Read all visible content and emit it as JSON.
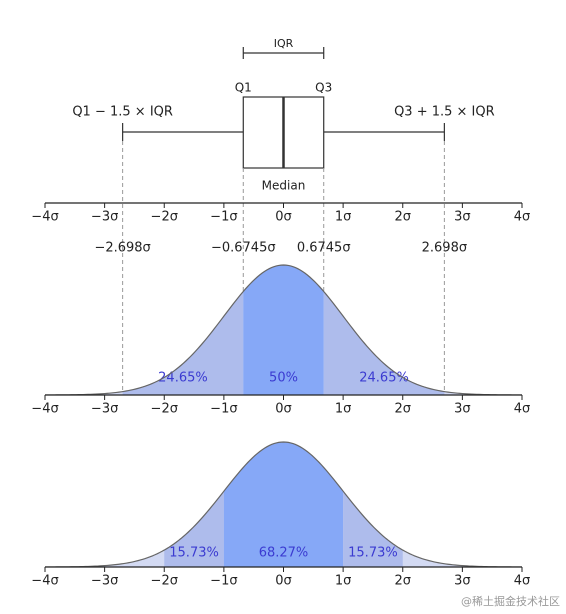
{
  "chart_data": [
    {
      "type": "box",
      "q1": -0.6745,
      "median": 0,
      "q3": 0.6745,
      "whisker_low": -2.698,
      "whisker_high": 2.698,
      "iqr_label": "IQR",
      "q1_label": "Q1",
      "q3_label": "Q3",
      "low_label": "Q1 − 1.5 × IQR",
      "high_label": "Q3 + 1.5 × IQR",
      "median_label": "Median",
      "xlim": [
        -4,
        4
      ],
      "xticks": [
        {
          "value": -4,
          "label": "−4σ"
        },
        {
          "value": -3,
          "label": "−3σ"
        },
        {
          "value": -2,
          "label": "−2σ"
        },
        {
          "value": -1,
          "label": "−1σ"
        },
        {
          "value": 0,
          "label": "0σ"
        },
        {
          "value": 1,
          "label": "1σ"
        },
        {
          "value": 2,
          "label": "2σ"
        },
        {
          "value": 3,
          "label": "3σ"
        },
        {
          "value": 4,
          "label": "4σ"
        }
      ],
      "marker_labels": [
        {
          "value": -2.698,
          "label": "−2.698σ"
        },
        {
          "value": -0.6745,
          "label": "−0.6745σ"
        },
        {
          "value": 0.6745,
          "label": "0.6745σ"
        },
        {
          "value": 2.698,
          "label": "2.698σ"
        }
      ]
    },
    {
      "type": "density",
      "xlim": [
        -4,
        4
      ],
      "fill_color": "#d3daf3",
      "xticks": [
        {
          "value": -4,
          "label": "−4σ"
        },
        {
          "value": -3,
          "label": "−3σ"
        },
        {
          "value": -2,
          "label": "−2σ"
        },
        {
          "value": -1,
          "label": "−1σ"
        },
        {
          "value": 0,
          "label": "0σ"
        },
        {
          "value": 1,
          "label": "1σ"
        },
        {
          "value": 2,
          "label": "2σ"
        },
        {
          "value": 3,
          "label": "3σ"
        },
        {
          "value": 4,
          "label": "4σ"
        }
      ],
      "regions": [
        {
          "from": -2.698,
          "to": -0.6745,
          "color": "#aebcec",
          "value": 24.65,
          "value_label": "24.65%"
        },
        {
          "from": -0.6745,
          "to": 0.6745,
          "color": "#86a8f7",
          "value": 50,
          "value_label": "50%"
        },
        {
          "from": 0.6745,
          "to": 2.698,
          "color": "#aebcec",
          "value": 24.65,
          "value_label": "24.65%"
        }
      ]
    },
    {
      "type": "density",
      "xlim": [
        -4,
        4
      ],
      "fill_color": "#d3daf3",
      "xticks": [
        {
          "value": -4,
          "label": "−4σ"
        },
        {
          "value": -3,
          "label": "−3σ"
        },
        {
          "value": -2,
          "label": "−2σ"
        },
        {
          "value": -1,
          "label": "−1σ"
        },
        {
          "value": 0,
          "label": "0σ"
        },
        {
          "value": 1,
          "label": "1σ"
        },
        {
          "value": 2,
          "label": "2σ"
        },
        {
          "value": 3,
          "label": "3σ"
        },
        {
          "value": 4,
          "label": "4σ"
        }
      ],
      "regions": [
        {
          "from": -2,
          "to": -1,
          "color": "#aebcec",
          "value": 15.73,
          "value_label": "15.73%"
        },
        {
          "from": -1,
          "to": 1,
          "color": "#86a8f7",
          "value": 68.27,
          "value_label": "68.27%"
        },
        {
          "from": 1,
          "to": 2,
          "color": "#aebcec",
          "value": 15.73,
          "value_label": "15.73%"
        }
      ]
    }
  ],
  "watermark": "@稀土掘金技术社区"
}
